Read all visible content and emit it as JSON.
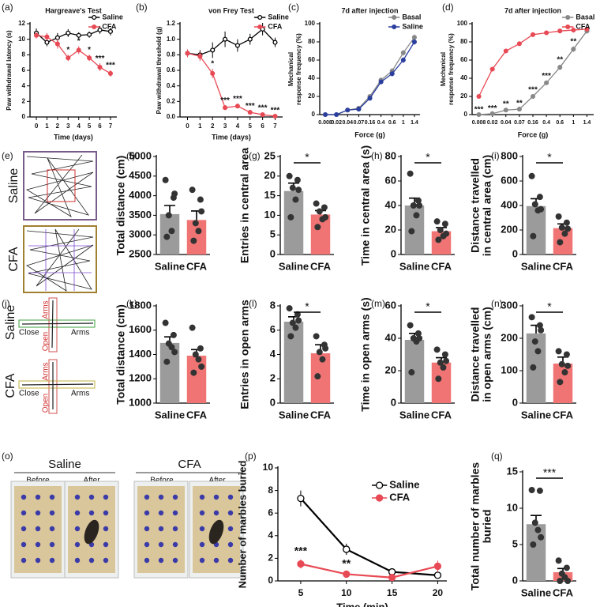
{
  "chart_data": [
    {
      "type": "line",
      "label": "(a)",
      "title": "Hargreave's Test",
      "xlabel": "Time (days)",
      "ylabel": "Paw withdrawal latency (s)",
      "x": [
        0,
        1,
        2,
        3,
        4,
        5,
        6,
        7
      ],
      "xlim": [
        -0.6,
        7.6
      ],
      "xticks": [
        0,
        1,
        2,
        3,
        4,
        5,
        6,
        7
      ],
      "ylim": [
        0,
        12
      ],
      "yticks": [
        0,
        2,
        4,
        6,
        8,
        10,
        12
      ],
      "legend": "upper right",
      "series": [
        {
          "name": "Saline",
          "color": "#000000",
          "open": true,
          "values": [
            10.8,
            9.6,
            10.2,
            10.8,
            10.5,
            10.6,
            11.2,
            11.0
          ],
          "errors": [
            0.6,
            0.5,
            0.6,
            0.5,
            0.4,
            0.4,
            0.5,
            0.5
          ]
        },
        {
          "name": "CFA",
          "color": "#e84a55",
          "values": [
            10.5,
            10.3,
            9.4,
            7.6,
            8.6,
            7.6,
            6.4,
            5.6
          ],
          "errors": [
            0.4,
            0.5,
            0.6,
            0.4,
            0.5,
            0.4,
            0.5,
            0.4
          ]
        }
      ],
      "stars": [
        null,
        null,
        null,
        "*",
        "*",
        "*",
        "***",
        "***"
      ]
    },
    {
      "type": "line",
      "label": "(b)",
      "title": "von Frey Test",
      "xlabel": "Time (days)",
      "ylabel": "Paw withdrawal threshold (g)",
      "x": [
        0,
        1,
        2,
        3,
        4,
        5,
        6,
        7
      ],
      "xlim": [
        -0.6,
        7.6
      ],
      "xticks": [
        0,
        1,
        2,
        3,
        4,
        5,
        6,
        7
      ],
      "ylim": [
        0,
        1.2
      ],
      "yticks": [
        {
          "value": 0,
          "label": "0.0"
        },
        0.2,
        0.4,
        0.6,
        0.8,
        {
          "value": 1,
          "label": "1.0"
        },
        1.2
      ],
      "legend": "upper right",
      "series": [
        {
          "name": "Saline",
          "color": "#000000",
          "open": true,
          "values": [
            0.82,
            0.8,
            0.86,
            1.0,
            0.92,
            1.0,
            1.13,
            0.96
          ],
          "errors": [
            0.05,
            0.06,
            0.1,
            0.1,
            0.08,
            0.07,
            0.08,
            0.06
          ]
        },
        {
          "name": "CFA",
          "color": "#e84a55",
          "values": [
            0.82,
            0.78,
            0.56,
            0.12,
            0.14,
            0.06,
            0.03,
            0.01
          ],
          "errors": [
            0.05,
            0.06,
            0.06,
            0.03,
            0.03,
            0.02,
            0.02,
            0.01
          ]
        }
      ],
      "stars": [
        null,
        null,
        "*",
        "***",
        "***",
        "***",
        "***",
        "***"
      ]
    },
    {
      "type": "line",
      "label": "(c)",
      "title": "7d after injection",
      "xlabel": "Force (g)",
      "ylabel": [
        "Mechanical",
        "response frequency (%)"
      ],
      "categories": [
        "0.008",
        "0.02",
        "0.04",
        "0.07",
        "0.16",
        "0.4",
        "0.6",
        "1",
        "1.4"
      ],
      "ylim": [
        0,
        100
      ],
      "yticks": [
        0,
        20,
        40,
        60,
        80,
        100
      ],
      "legend": "upper right",
      "series": [
        {
          "name": "Basal",
          "color": "#888888",
          "values": [
            0,
            0,
            5,
            7,
            20,
            38,
            48,
            68,
            85
          ],
          "errors": [
            0,
            0,
            1,
            1,
            2,
            2,
            3,
            3,
            3
          ]
        },
        {
          "name": "Saline",
          "color": "#2b3f9e",
          "values": [
            0,
            0,
            5,
            6,
            18,
            36,
            45,
            60,
            80
          ],
          "errors": [
            0,
            0,
            1,
            1,
            2,
            2,
            3,
            3,
            3
          ]
        }
      ]
    },
    {
      "type": "line",
      "label": "(d)",
      "title": "7d after injection",
      "xlabel": "Force (g)",
      "ylabel": [
        "Mechanical",
        "response frequency (%)"
      ],
      "categories": [
        "0.008",
        "0.02",
        "0.04",
        "0.07",
        "0.16",
        "0.4",
        "0.6",
        "1",
        "1.4"
      ],
      "ylim": [
        0,
        100
      ],
      "yticks": [
        0,
        20,
        40,
        60,
        80,
        100
      ],
      "legend": "upper right",
      "series": [
        {
          "name": "Basal",
          "color": "#888888",
          "values": [
            0,
            1,
            5,
            6,
            20,
            35,
            52,
            72,
            92
          ],
          "errors": [
            0,
            0.5,
            1,
            1,
            2,
            2,
            3,
            3,
            3
          ]
        },
        {
          "name": "CFA",
          "color": "#e84a55",
          "values": [
            20,
            50,
            70,
            78,
            88,
            90,
            92,
            93,
            94
          ],
          "errors": [
            1,
            1,
            1,
            1,
            1,
            1,
            1,
            1,
            2
          ]
        }
      ],
      "stars": [
        "***",
        "***",
        "**",
        "**",
        "***",
        "***",
        "**",
        "**",
        null
      ]
    },
    {
      "type": "photo",
      "label": "(e)",
      "labels": [
        "Saline",
        "CFA"
      ]
    },
    {
      "type": "bar",
      "label": "(f)",
      "ylabel": "Total distance (cm)",
      "categories": [
        "Saline",
        "CFA"
      ],
      "colors": [
        "#9b9b9b",
        "#f07474"
      ],
      "values": [
        3530,
        3380
      ],
      "errors": [
        220,
        230
      ],
      "points": [
        [
          4400,
          3950,
          3500,
          3100,
          2950,
          4050
        ],
        [
          4150,
          3900,
          3300,
          3100,
          2850,
          3600
        ]
      ],
      "ylim": [
        2500,
        5000
      ],
      "yticks": [
        2500,
        3000,
        3500,
        4000,
        4500,
        5000
      ]
    },
    {
      "type": "bar",
      "label": "(g)",
      "ylabel": "Entries in central area",
      "categories": [
        "Saline",
        "CFA"
      ],
      "colors": [
        "#9b9b9b",
        "#f07474"
      ],
      "values": [
        16.2,
        10.2
      ],
      "errors": [
        2.0,
        1.0
      ],
      "points": [
        [
          20,
          19,
          17,
          14,
          9.5,
          16.5
        ],
        [
          13,
          12,
          11,
          9,
          7,
          9.5
        ]
      ],
      "ylim": [
        0,
        25
      ],
      "yticks": [
        0,
        5,
        10,
        15,
        20,
        25
      ],
      "significance": "*"
    },
    {
      "type": "bar",
      "label": "(h)",
      "ylabel": "Time in central area (s)",
      "categories": [
        "Saline",
        "CFA"
      ],
      "colors": [
        "#9b9b9b",
        "#f07474"
      ],
      "values": [
        40,
        19
      ],
      "errors": [
        6,
        3
      ],
      "points": [
        [
          66,
          44,
          40,
          32,
          19,
          40
        ],
        [
          27,
          25,
          20,
          15,
          12,
          17
        ]
      ],
      "ylim": [
        0,
        80
      ],
      "yticks": [
        0,
        20,
        40,
        60,
        80
      ],
      "significance": "*"
    },
    {
      "type": "bar",
      "label": "(i)",
      "ylabel": [
        "Distance travelled",
        "in central area (cm)"
      ],
      "categories": [
        "Saline",
        "CFA"
      ],
      "colors": [
        "#9b9b9b",
        "#f07474"
      ],
      "values": [
        395,
        215
      ],
      "errors": [
        60,
        35
      ],
      "points": [
        [
          640,
          470,
          410,
          360,
          150,
          370
        ],
        [
          310,
          260,
          220,
          170,
          100,
          210
        ]
      ],
      "ylim": [
        0,
        800
      ],
      "yticks": [
        0,
        200,
        400,
        600,
        800
      ],
      "significance": "*"
    },
    {
      "type": "photo",
      "label": "(j)",
      "labels": [
        "Saline",
        "Arms",
        "Close",
        "Arms",
        "Open",
        "CFA",
        "Arms",
        "Close",
        "Arms",
        "Open"
      ]
    },
    {
      "type": "bar",
      "label": "(k)",
      "ylabel": "Total distance (cm)",
      "categories": [
        "Saline",
        "CFA"
      ],
      "colors": [
        "#9b9b9b",
        "#f07474"
      ],
      "values": [
        1495,
        1390
      ],
      "errors": [
        50,
        50
      ],
      "points": [
        [
          1660,
          1560,
          1490,
          1460,
          1340,
          1420
        ],
        [
          1620,
          1450,
          1400,
          1360,
          1250,
          1300
        ]
      ],
      "ylim": [
        1000,
        1800
      ],
      "yticks": [
        1000,
        1200,
        1400,
        1600,
        1800
      ]
    },
    {
      "type": "bar",
      "label": "(l)",
      "ylabel": [
        "Entries in open arms"
      ],
      "categories": [
        "Saline",
        "CFA"
      ],
      "colors": [
        "#9b9b9b",
        "#f07474"
      ],
      "values": [
        6.7,
        4.1
      ],
      "errors": [
        0.4,
        0.7
      ],
      "points": [
        [
          7.8,
          7.3,
          6.6,
          6.2,
          5.5,
          6.8
        ],
        [
          5.5,
          4.8,
          4.2,
          3.6,
          2.2,
          4.5
        ]
      ],
      "ylim": [
        0,
        8
      ],
      "yticks": [
        0,
        2,
        4,
        6,
        8
      ],
      "significance": "*"
    },
    {
      "type": "bar",
      "label": "(m)",
      "ylabel": "Time in open arms (s)",
      "categories": [
        "Saline",
        "CFA"
      ],
      "colors": [
        "#9b9b9b",
        "#f07474"
      ],
      "values": [
        39,
        25
      ],
      "errors": [
        4,
        3
      ],
      "points": [
        [
          48,
          43,
          40,
          38,
          19,
          40
        ],
        [
          33,
          30,
          25,
          22,
          15,
          26
        ]
      ],
      "ylim": [
        0,
        60
      ],
      "yticks": [
        0,
        20,
        40,
        60
      ],
      "significance": "*"
    },
    {
      "type": "bar",
      "label": "(n)",
      "ylabel": [
        "Distance travelled",
        "in open arms (cm)"
      ],
      "categories": [
        "Saline",
        "CFA"
      ],
      "colors": [
        "#9b9b9b",
        "#f07474"
      ],
      "values": [
        215,
        122
      ],
      "errors": [
        25,
        20
      ],
      "points": [
        [
          265,
          240,
          190,
          160,
          110,
          225
        ],
        [
          160,
          150,
          120,
          95,
          65,
          115
        ]
      ],
      "ylim": [
        0,
        300
      ],
      "yticks": [
        0,
        100,
        200,
        300
      ],
      "significance": "*"
    },
    {
      "type": "photo",
      "label": "(o)",
      "labels": [
        "Saline",
        "Before",
        "After",
        "CFA",
        "Before",
        "After"
      ]
    },
    {
      "type": "line",
      "label": "(p)",
      "xlabel": "Time (min)",
      "ylabel": "Number of marbles buried",
      "x": [
        5,
        10,
        15,
        20
      ],
      "xlim": [
        2.5,
        21
      ],
      "xticks": [
        5,
        10,
        15,
        20
      ],
      "ylim": [
        0,
        10
      ],
      "yticks": [
        0,
        2,
        4,
        6,
        8,
        10
      ],
      "legend": "upper right",
      "series": [
        {
          "name": "Saline",
          "color": "#000000",
          "open": true,
          "values": [
            7.3,
            2.8,
            0.8,
            0.5
          ],
          "errors": [
            0.7,
            0.5,
            0.2,
            0.2
          ]
        },
        {
          "name": "CFA",
          "color": "#e84a55",
          "values": [
            1.5,
            0.6,
            0.3,
            1.3
          ],
          "errors": [
            0.4,
            0.2,
            0.1,
            0.5
          ]
        }
      ],
      "stars": [
        "***",
        "**",
        null,
        null
      ]
    },
    {
      "type": "bar",
      "label": "(q)",
      "ylabel": [
        "Total number of marbles",
        "buried"
      ],
      "categories": [
        "Saline",
        "CFA"
      ],
      "colors": [
        "#9b9b9b",
        "#f07474"
      ],
      "values": [
        7.8,
        1.2
      ],
      "errors": [
        1.2,
        0.5
      ],
      "points": [
        [
          12.5,
          12.4,
          8,
          7,
          5,
          6
        ],
        [
          2.8,
          1.8,
          1,
          0.5,
          0,
          0
        ]
      ],
      "ylim": [
        0,
        15
      ],
      "yticks": [
        0,
        5,
        10,
        15
      ],
      "significance": "***"
    }
  ]
}
